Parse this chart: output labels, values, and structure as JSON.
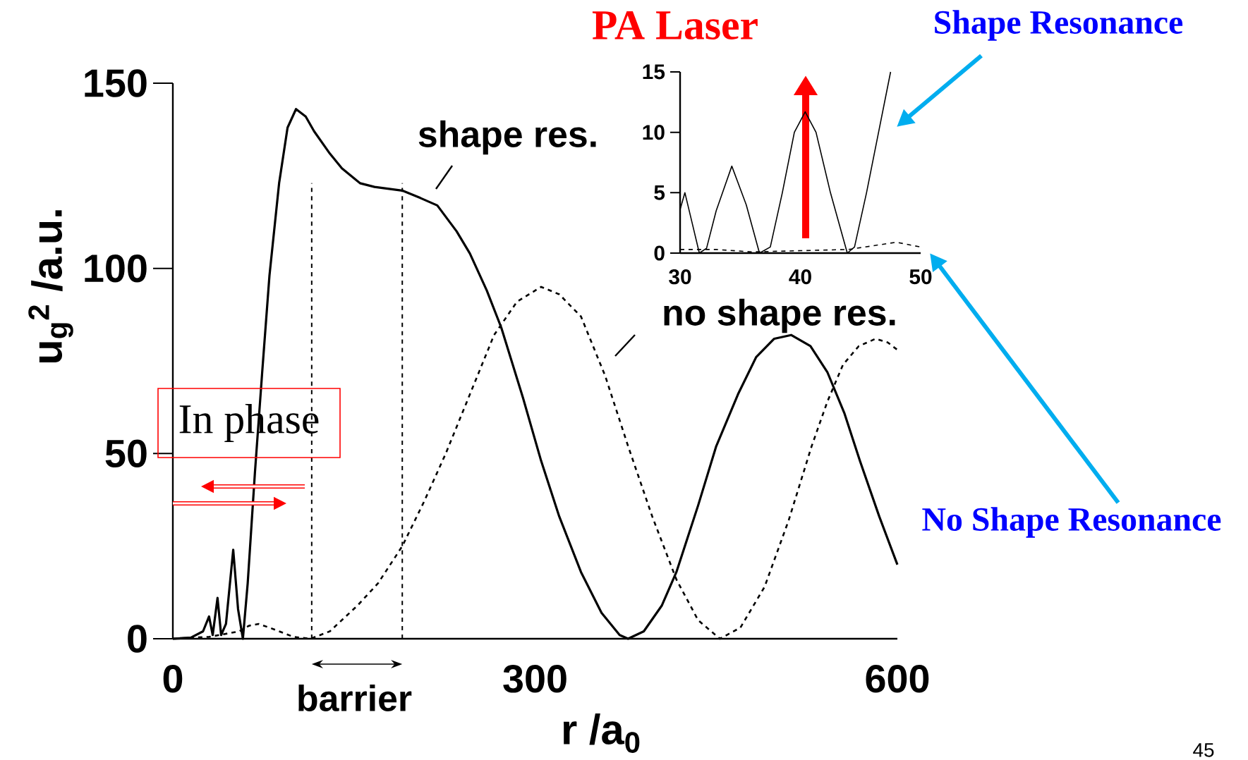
{
  "chart_data": [
    {
      "type": "line",
      "xlabel": "r /a$_{0}$",
      "ylabel": "u$_{g}$$^{2}$ /a.u.",
      "xlim": [
        0,
        600
      ],
      "ylim": [
        0,
        150
      ],
      "xticks": [
        0,
        300,
        600
      ],
      "yticks": [
        0,
        50,
        100,
        150
      ],
      "series": [
        {
          "color": "#000000",
          "line_style": "solid",
          "x": [
            0,
            15,
            25,
            30,
            33,
            37,
            40,
            44,
            50,
            54,
            58,
            62,
            68,
            74,
            80,
            88,
            95,
            102,
            110,
            117,
            130,
            140,
            155,
            167,
            190,
            205,
            219,
            235,
            246,
            260,
            272,
            290,
            305,
            320,
            338,
            355,
            370,
            377,
            390,
            405,
            417,
            435,
            450,
            468,
            483,
            498,
            512,
            528,
            542,
            556,
            569,
            585,
            600
          ],
          "values": [
            0,
            0.3,
            2,
            6,
            1,
            11,
            1,
            4,
            24,
            8,
            0,
            15,
            45,
            72,
            98,
            123,
            138,
            143,
            141,
            137,
            131,
            127,
            123,
            122,
            121,
            119,
            117,
            110,
            104,
            94,
            84,
            65,
            48,
            33,
            18,
            7,
            1,
            0,
            2,
            9,
            18,
            36,
            52,
            66,
            76,
            81,
            82,
            79,
            72,
            61,
            48,
            33,
            20
          ]
        },
        {
          "color": "#000000",
          "line_style": "dashed",
          "x": [
            0,
            30,
            55,
            63,
            71,
            80,
            88,
            100,
            114,
            130,
            153,
            170,
            190,
            208,
            226,
            246,
            266,
            285,
            305,
            320,
            338,
            358,
            377,
            397,
            417,
            435,
            453,
            470,
            490,
            510,
            529,
            542,
            555,
            568,
            582,
            592,
            600
          ],
          "values": [
            0,
            0.5,
            2,
            3.5,
            4,
            3,
            2,
            0.5,
            0,
            2,
            9,
            15,
            25,
            37,
            50,
            66,
            82,
            91,
            95,
            93,
            87,
            71,
            52,
            33,
            16,
            5,
            0,
            3,
            14,
            32,
            52,
            64,
            74,
            79,
            81,
            80,
            78
          ]
        }
      ],
      "ref_lines": [
        {
          "axis": "x",
          "value": 115,
          "line_style": "dashed",
          "color": "#000000"
        },
        {
          "axis": "x",
          "value": 190,
          "line_style": "dashed",
          "color": "#000000"
        }
      ],
      "annotations": [
        "shape res.",
        "no shape res.",
        "barrier",
        "In phase",
        "PA Laser",
        "Shape Resonance",
        "No Shape Resonance",
        "45"
      ]
    },
    {
      "type": "line",
      "xlim": [
        30,
        50
      ],
      "ylim": [
        0,
        15
      ],
      "xticks": [
        30,
        40,
        50
      ],
      "yticks": [
        0,
        5,
        10,
        15
      ],
      "series": [
        {
          "color": "#000000",
          "line_style": "solid",
          "x": [
            30,
            30.4,
            31,
            31.6,
            32.2,
            33,
            34.3,
            35.5,
            36.6,
            37.5,
            38.5,
            39.5,
            40.4,
            41.3,
            42.5,
            43.9,
            44.5,
            45.5,
            46.5,
            47.5
          ],
          "values": [
            3.6,
            5,
            2.5,
            0,
            0.4,
            3.5,
            7.2,
            4,
            0,
            0.5,
            5,
            10,
            11.7,
            10,
            5,
            0,
            0.5,
            5,
            10,
            15
          ]
        },
        {
          "color": "#000000",
          "line_style": "dashed",
          "x": [
            30,
            33,
            36,
            40,
            44,
            46,
            48,
            50
          ],
          "values": [
            0.3,
            0.3,
            0.1,
            0.2,
            0.3,
            0.6,
            0.9,
            0.5
          ]
        }
      ]
    }
  ]
}
